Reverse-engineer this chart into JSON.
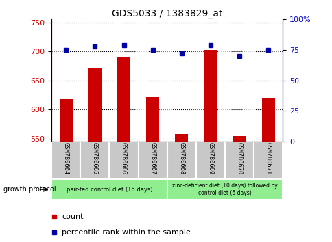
{
  "title": "GDS5033 / 1383829_at",
  "samples": [
    "GSM780664",
    "GSM780665",
    "GSM780666",
    "GSM780667",
    "GSM780668",
    "GSM780669",
    "GSM780670",
    "GSM780671"
  ],
  "counts": [
    618,
    672,
    690,
    622,
    558,
    703,
    555,
    620
  ],
  "percentiles": [
    75,
    78,
    79,
    75,
    72,
    79,
    70,
    75
  ],
  "group1_label": "pair-fed control diet (16 days)",
  "group2_label": "zinc-deficient diet (10 days) followed by\ncontrol diet (6 days)",
  "ylim_left": [
    545,
    755
  ],
  "ylim_right": [
    0,
    100
  ],
  "yticks_left": [
    550,
    600,
    650,
    700,
    750
  ],
  "yticks_right": [
    0,
    25,
    50,
    75,
    100
  ],
  "bar_color": "#CC0000",
  "dot_color": "#0000AA",
  "grid_color": "#000000",
  "label_area_color": "#C8C8C8",
  "group_color": "#90EE90",
  "legend_count_color": "#CC0000",
  "legend_pct_color": "#0000AA",
  "left_axis_color": "#CC0000",
  "right_axis_color": "#0000CC"
}
